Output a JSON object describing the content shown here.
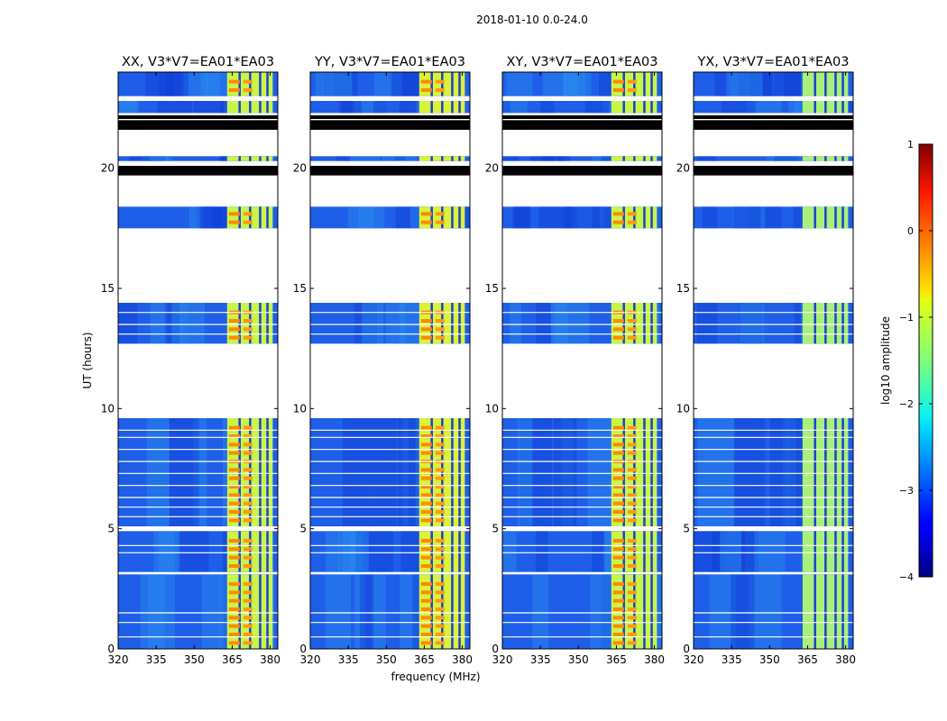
{
  "chart_data": {
    "type": "heatmap",
    "title": "2018-01-10 0.0-24.0",
    "xlabel": "frequency (MHz)",
    "ylabel": "UT (hours)",
    "xlim": [
      320,
      383
    ],
    "ylim": [
      0,
      24
    ],
    "x_ticks": [
      320,
      335,
      350,
      365,
      380
    ],
    "x_tick_labels": [
      "320",
      "335",
      "350",
      "365",
      "380"
    ],
    "y_ticks": [
      0,
      5,
      10,
      15,
      20
    ],
    "y_tick_labels": [
      "0",
      "5",
      "10",
      "15",
      "20"
    ],
    "panels": [
      {
        "title": "XX, V3*V7=EA01*EA03",
        "rfi_level": 0.55
      },
      {
        "title": "YY, V3*V7=EA01*EA03",
        "rfi_level": 0.75
      },
      {
        "title": "XY, V3*V7=EA01*EA03",
        "rfi_level": 0.6
      },
      {
        "title": "YX, V3*V7=EA01*EA03",
        "rfi_level": 0.45
      }
    ],
    "observed_blocks_hours": [
      [
        0,
        3.1
      ],
      [
        3.2,
        4.9
      ],
      [
        5.1,
        9.6
      ],
      [
        12.7,
        14.4
      ],
      [
        17.5,
        18.4
      ],
      [
        20.3,
        20.5
      ],
      [
        22.3,
        22.8
      ],
      [
        23.0,
        24.0
      ]
    ],
    "flagged_black_blocks_hours": [
      [
        19.7,
        20.1
      ],
      [
        21.6,
        22.0
      ],
      [
        22.05,
        22.2
      ]
    ],
    "rfi_band_mhz": [
      363,
      381
    ],
    "colorbar": {
      "label": "log10 amplitude",
      "range": [
        -4,
        1
      ],
      "ticks": [
        1,
        0,
        -1,
        -2,
        -3,
        -4
      ],
      "tick_labels": [
        "1",
        "0",
        "−1",
        "−2",
        "−3",
        "−4"
      ],
      "colormap": "jet"
    }
  }
}
